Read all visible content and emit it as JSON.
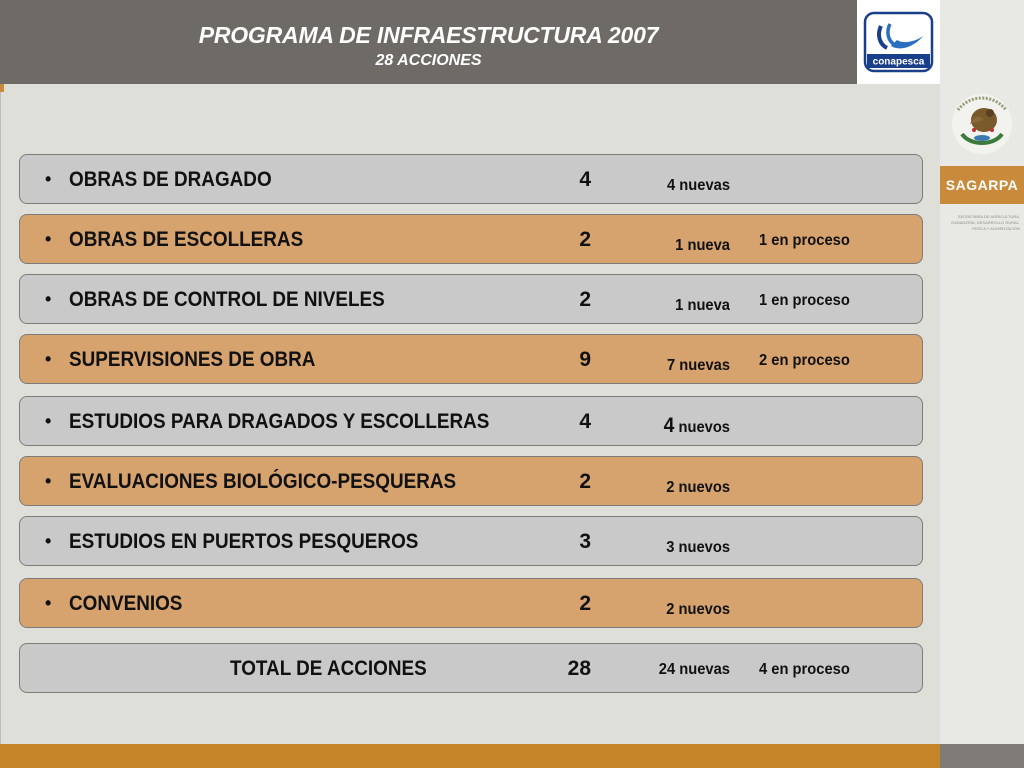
{
  "header": {
    "title": "PROGRAMA DE INFRAESTRUCTURA 2007",
    "subtitle": "28 ACCIONES"
  },
  "logos": {
    "conapesca": "conapesca",
    "sagarpa": "SAGARPA",
    "sagarpa_desc": "SECRETARÍA DE AGRICULTURA, GANADERÍA, DESARROLLO RURAL, PESCA Y ALIMENTACIÓN",
    "seal_text": "ESTADOS UNIDOS MEXICANOS"
  },
  "rows": [
    {
      "label": "OBRAS DE DRAGADO",
      "count": "4",
      "detail1_num": "",
      "detail1": "4 nuevas",
      "detail2": ""
    },
    {
      "label": "OBRAS DE ESCOLLERAS",
      "count": "2",
      "detail1_num": "",
      "detail1": "1 nueva",
      "detail2": "1 en proceso"
    },
    {
      "label": "OBRAS DE CONTROL DE NIVELES",
      "count": "2",
      "detail1_num": "",
      "detail1": "1 nueva",
      "detail2": "1 en proceso"
    },
    {
      "label": "SUPERVISIONES DE OBRA",
      "count": "9",
      "detail1_num": "",
      "detail1": "7 nuevas",
      "detail2": "2 en proceso"
    },
    {
      "label": "ESTUDIOS PARA DRAGADOS Y ESCOLLERAS",
      "count": "4",
      "detail1_num": "4",
      "detail1": " nuevos",
      "detail2": ""
    },
    {
      "label": "EVALUACIONES BIOLÓGICO-PESQUERAS",
      "count": "2",
      "detail1_num": "",
      "detail1": "2 nuevos",
      "detail2": ""
    },
    {
      "label": "ESTUDIOS EN PUERTOS PESQUEROS",
      "count": "3",
      "detail1_num": "",
      "detail1": "3 nuevos",
      "detail2": ""
    },
    {
      "label": "CONVENIOS",
      "count": "2",
      "detail1_num": "",
      "detail1": "2 nuevos",
      "detail2": ""
    }
  ],
  "total": {
    "label": "TOTAL DE ACCIONES",
    "count": "28",
    "detail1": "24 nuevas",
    "detail2": "4 en proceso"
  },
  "colors": {
    "header_bg": "#6e6b66",
    "row_gray": "#c9c9c9",
    "row_tan": "#d6a36e",
    "accent": "#c68529"
  }
}
